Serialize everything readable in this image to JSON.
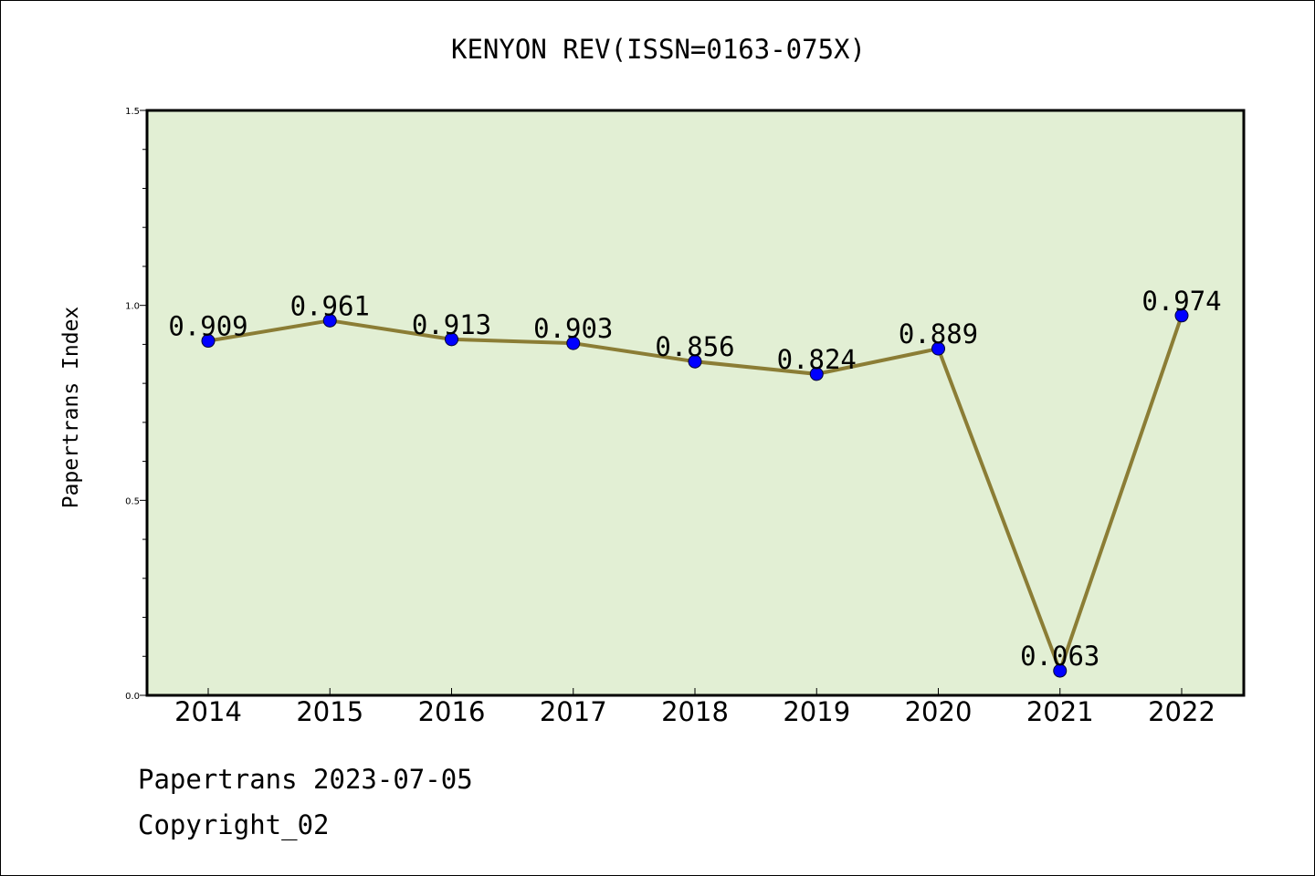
{
  "chart_data": {
    "type": "line",
    "title": "KENYON REV(ISSN=0163-075X)",
    "xlabel": "",
    "ylabel": "Papertrans Index",
    "categories": [
      "2014",
      "2015",
      "2016",
      "2017",
      "2018",
      "2019",
      "2020",
      "2021",
      "2022"
    ],
    "values": [
      0.909,
      0.961,
      0.913,
      0.903,
      0.856,
      0.824,
      0.889,
      0.063,
      0.974
    ],
    "data_labels": [
      "0.909",
      "0.961",
      "0.913",
      "0.903",
      "0.856",
      "0.824",
      "0.889",
      "0.063",
      "0.974"
    ],
    "ylim": [
      0,
      1.5
    ],
    "yticks": [
      0.0,
      0.5,
      1.0,
      1.5
    ],
    "ytick_labels": [
      "0.0",
      "0.5",
      "1.0",
      "1.5"
    ],
    "grid": false,
    "colors": {
      "plot_background": "#e2efd4",
      "line": "#8b7d35",
      "marker": "#0000ff"
    }
  },
  "footer": {
    "line1": "Papertrans 2023-07-05",
    "line2": "Copyright_02"
  }
}
